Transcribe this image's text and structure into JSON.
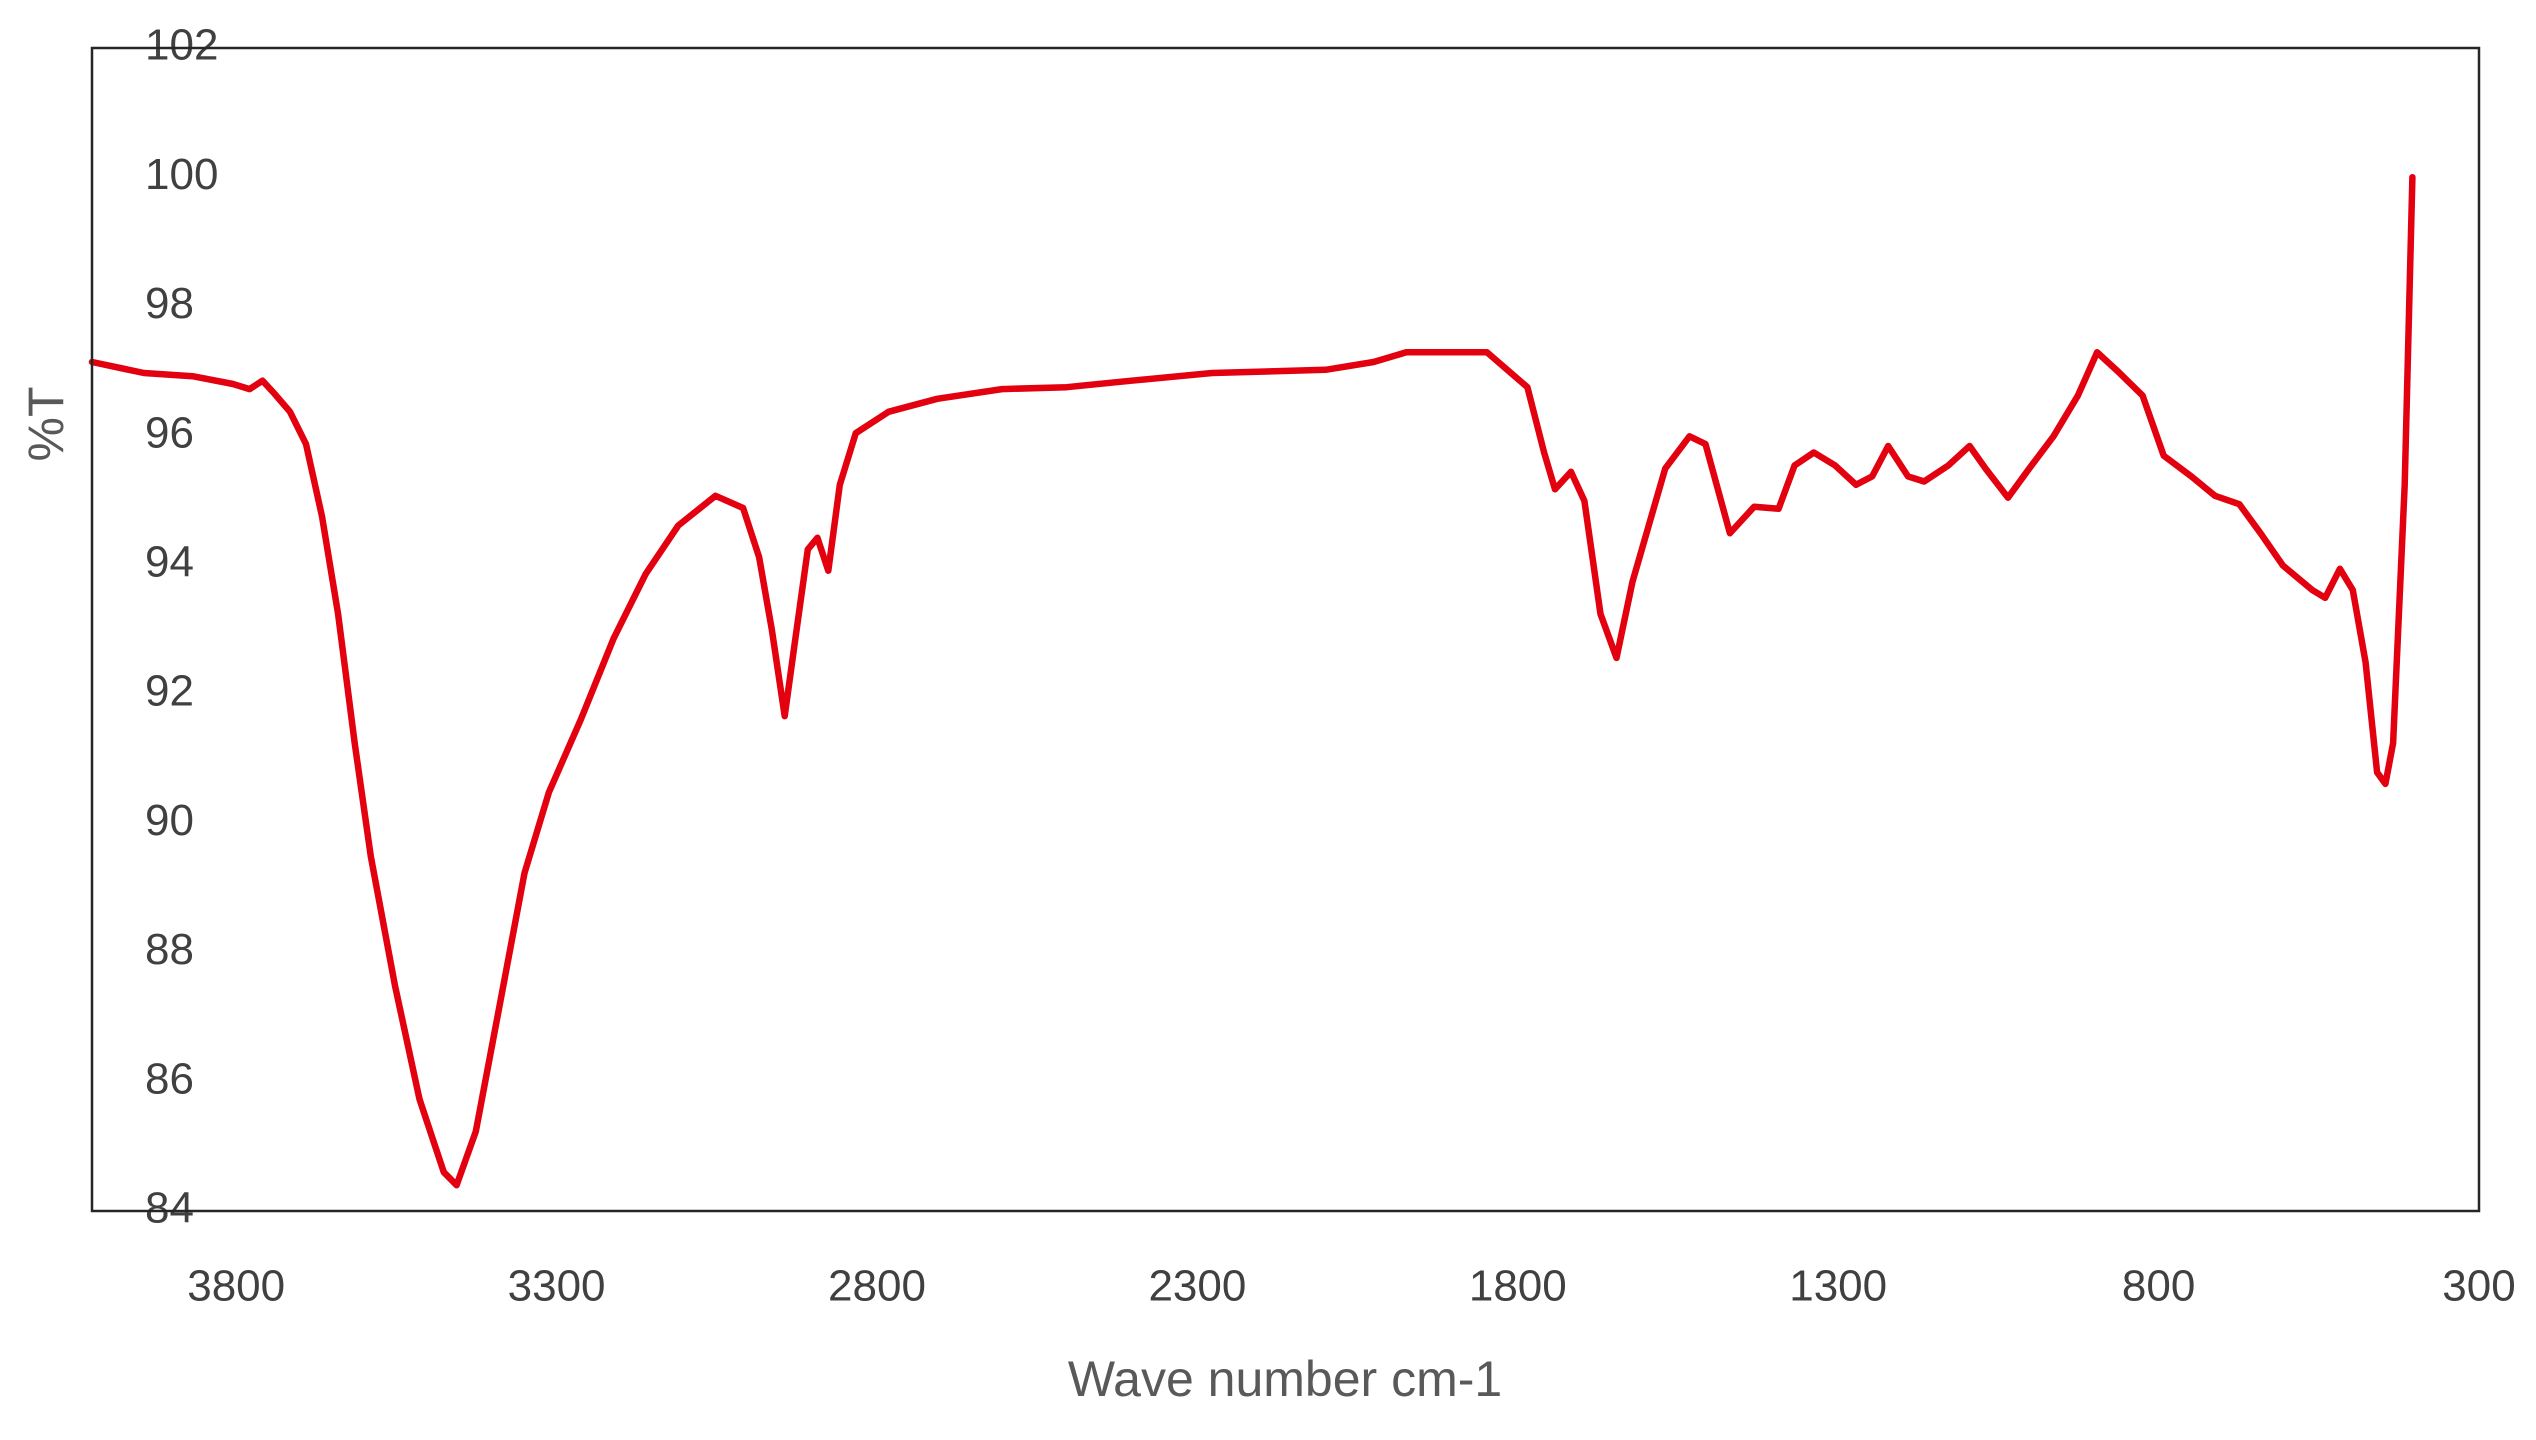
{
  "chart_data": {
    "type": "line",
    "xlabel": "Wave number cm-1",
    "ylabel": "%T",
    "x": [
      4025,
      3944,
      3868,
      3805,
      3779,
      3759,
      3742,
      3716,
      3691,
      3666,
      3641,
      3615,
      3590,
      3552,
      3514,
      3476,
      3456,
      3426,
      3388,
      3350,
      3312,
      3262,
      3211,
      3161,
      3110,
      3052,
      3009,
      2984,
      2964,
      2944,
      2929,
      2908,
      2893,
      2876,
      2858,
      2833,
      2782,
      2706,
      2605,
      2504,
      2403,
      2277,
      2100,
      2025,
      1974,
      1848,
      1785,
      1759,
      1742,
      1717,
      1696,
      1671,
      1646,
      1621,
      1570,
      1532,
      1507,
      1469,
      1431,
      1393,
      1368,
      1338,
      1305,
      1272,
      1247,
      1222,
      1191,
      1166,
      1128,
      1095,
      1070,
      1035,
      1002,
      964,
      926,
      896,
      863,
      825,
      792,
      749,
      712,
      674,
      641,
      606,
      560,
      540,
      517,
      497,
      477,
      459,
      446,
      434,
      416,
      404
    ],
    "values": [
      97.14,
      96.97,
      96.92,
      96.8,
      96.72,
      96.85,
      96.67,
      96.37,
      95.87,
      94.75,
      93.24,
      91.24,
      89.49,
      87.48,
      85.73,
      84.6,
      84.4,
      85.23,
      87.23,
      89.23,
      90.48,
      91.61,
      92.86,
      93.86,
      94.61,
      95.07,
      94.88,
      94.12,
      92.99,
      91.66,
      92.74,
      94.24,
      94.42,
      93.91,
      95.24,
      96.04,
      96.37,
      96.57,
      96.72,
      96.75,
      96.85,
      96.97,
      97.02,
      97.14,
      97.29,
      97.29,
      96.75,
      95.74,
      95.17,
      95.44,
      94.99,
      93.24,
      92.56,
      93.74,
      95.49,
      95.99,
      95.87,
      94.49,
      94.9,
      94.87,
      95.54,
      95.74,
      95.54,
      95.24,
      95.37,
      95.84,
      95.37,
      95.29,
      95.54,
      95.84,
      95.49,
      95.04,
      95.49,
      95.99,
      96.62,
      97.29,
      96.99,
      96.62,
      95.69,
      95.37,
      95.07,
      94.94,
      94.49,
      93.99,
      93.61,
      93.49,
      93.94,
      93.61,
      92.49,
      90.79,
      90.61,
      91.24,
      95.24,
      100.0
    ],
    "color": "#e3000f",
    "xlim": [
      4025,
      300
    ],
    "xticks": [
      3800,
      3300,
      2800,
      2300,
      1800,
      1300,
      800,
      300
    ],
    "ylim": [
      84,
      102
    ],
    "yticks": [
      84,
      86,
      88,
      90,
      92,
      94,
      96,
      98,
      100,
      102
    ],
    "grid": false
  }
}
